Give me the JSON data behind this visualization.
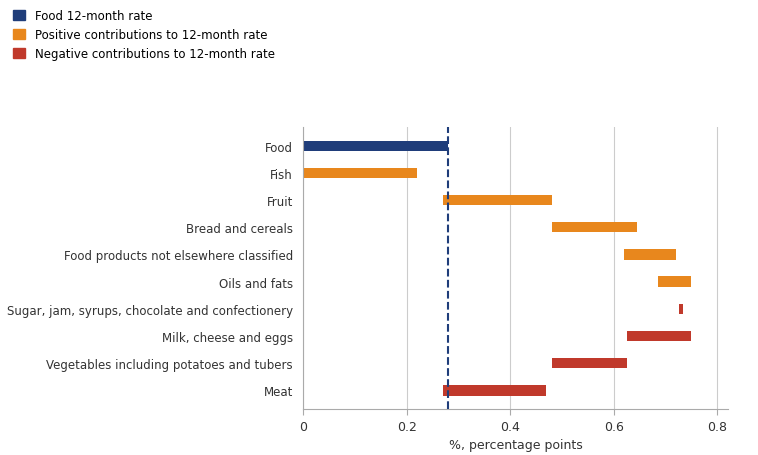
{
  "categories": [
    "Food",
    "Fish",
    "Fruit",
    "Bread and cereals",
    "Food products not elsewhere classified",
    "Oils and fats",
    "Sugar, jam, syrups, chocolate and confectionery",
    "Milk, cheese and eggs",
    "Vegetables including potatoes and tubers",
    "Meat"
  ],
  "bar_left": [
    0,
    0,
    0.27,
    0.48,
    0.62,
    0.685,
    0.725,
    0.625,
    0.48,
    0.27
  ],
  "bar_width": [
    0.28,
    0.22,
    0.21,
    0.165,
    0.1,
    0.065,
    0.008,
    0.125,
    0.145,
    0.2
  ],
  "bar_colors": [
    "#1f3d7a",
    "#e8871d",
    "#e8871d",
    "#e8871d",
    "#e8871d",
    "#e8871d",
    "#c0392b",
    "#c0392b",
    "#c0392b",
    "#c0392b"
  ],
  "dashed_line_x": 0.28,
  "xlim": [
    0,
    0.82
  ],
  "xticks": [
    0,
    0.2,
    0.4,
    0.6,
    0.8
  ],
  "xtick_labels": [
    "0",
    "0.2",
    "0.4",
    "0.6",
    "0.8"
  ],
  "xlabel": "%, percentage points",
  "legend_labels": [
    "Food 12-month rate",
    "Positive contributions to 12-month rate",
    "Negative contributions to 12-month rate"
  ],
  "legend_colors": [
    "#1f3d7a",
    "#e8871d",
    "#c0392b"
  ],
  "grid_color": "#cccccc",
  "bar_height": 0.38
}
